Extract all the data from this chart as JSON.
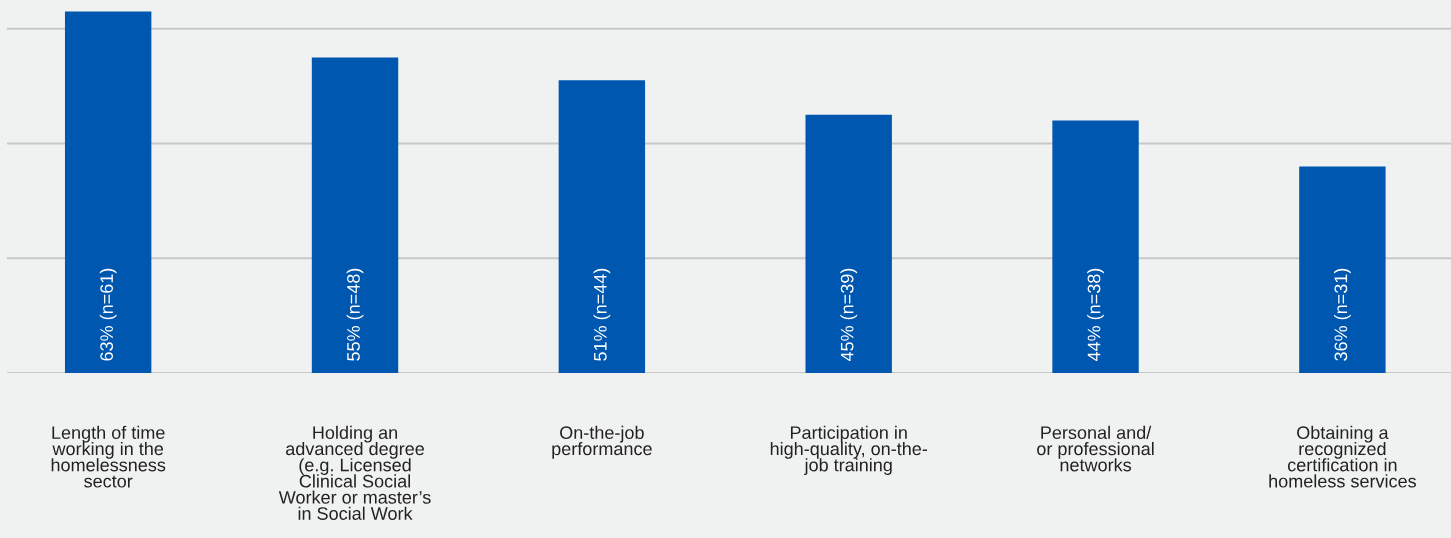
{
  "chart_data": {
    "type": "bar",
    "categories": [
      "Length of time\nworking in the\nhomelessness\nsector",
      "Holding an\nadvanced degree\n(e.g. Licensed\nClinical Social\nWorker or master’s\nin Social Work",
      "On-the-job\nperformance",
      "Participation in\nhigh-quality, on-the-\njob training",
      "Personal and/\nor professional\nnetworks",
      "Obtaining a\nrecognized\ncertification in\nhomeless services"
    ],
    "values": [
      63,
      55,
      51,
      45,
      44,
      36
    ],
    "value_labels": [
      "63% (n=61)",
      "55% (n=48)",
      "51% (n=44)",
      "45% (n=39)",
      "44% (n=38)",
      "36% (n=31)"
    ],
    "color": "#0057b0",
    "ylim": [
      0,
      65
    ],
    "yticks": [
      {
        "value": 0,
        "label": null
      },
      {
        "value": 20,
        "label": null
      },
      {
        "value": 40,
        "label": null
      },
      {
        "value": 60,
        "label": null
      }
    ],
    "grid": "y",
    "tick_labels": "x"
  }
}
